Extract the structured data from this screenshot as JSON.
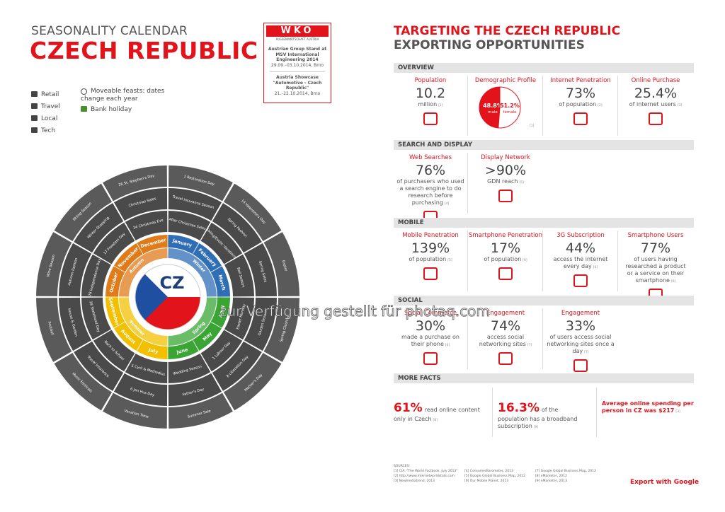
{
  "left": {
    "title": "SEASONALITY CALENDAR",
    "subtitle": "CZECH REPUBLIC",
    "wko": {
      "logo": "WKO",
      "tagline": "AUSSENWIRTSCHAFT AUSTRIA",
      "events": [
        {
          "title": "Austrian Group Stand at MSV International Engineering 2014",
          "date": "29.09.–03.10.2014, Brno"
        },
        {
          "title": "Austria Showcase \"Automotive - Czech Republic\"",
          "date": "21.–22.10.2014, Brno"
        }
      ]
    },
    "legend": {
      "categories": [
        "Retail",
        "Travel",
        "Local",
        "Tech"
      ],
      "moveable": "Moveable feasts: dates change each year",
      "holiday": "Bank holiday"
    },
    "wheel": {
      "center": "CZ",
      "seasons": [
        {
          "name": "Winter",
          "color": "#2f6db5"
        },
        {
          "name": "Spring",
          "color": "#3aa535"
        },
        {
          "name": "Summer",
          "color": "#f2c000"
        },
        {
          "name": "Autumn",
          "color": "#e07b1a"
        }
      ],
      "months": [
        {
          "name": "January",
          "events": [
            "After Christmas Sales",
            "Travel Insurance Season",
            "1 Restoration Day"
          ]
        },
        {
          "name": "February",
          "events": [
            "Skiing/Exotic Vacations",
            "Spring Fashion",
            "14 Valentine's Day"
          ]
        },
        {
          "name": "March",
          "events": [
            "Ball Season",
            "Spring Sales",
            "Easter"
          ]
        },
        {
          "name": "April",
          "events": [
            "Easter Monday",
            "Garden Season",
            "Spring Cleaning"
          ]
        },
        {
          "name": "May",
          "events": [
            "1 Labour Day",
            "8 Liberation Day",
            "Mother's Day"
          ]
        },
        {
          "name": "June",
          "events": [
            "Wedding Season",
            "Father's Day",
            "Summer Sale"
          ]
        },
        {
          "name": "July",
          "events": [
            "5 Cyril & Methodius",
            "6 Jan Hus Day",
            "Vacation Time"
          ]
        },
        {
          "name": "August",
          "events": [
            "Back to School",
            "Travel Insurance",
            "Music Festivals"
          ]
        },
        {
          "name": "September",
          "events": [
            "28 Statehood Day",
            "House & Garden",
            "Football"
          ]
        },
        {
          "name": "October",
          "events": [
            "28 Independence Day",
            "Autumn Fashion",
            "Wine Season"
          ]
        },
        {
          "name": "November",
          "events": [
            "17 Freedom Day",
            "Winter Shopping",
            "Skiing Season"
          ]
        },
        {
          "name": "December",
          "events": [
            "24 Christmas Eve",
            "Christmas Sales",
            "26 St. Stephen's Day"
          ]
        }
      ]
    }
  },
  "right": {
    "title": "TARGETING THE CZECH REPUBLIC",
    "subtitle": "EXPORTING OPPORTUNITIES",
    "sections": [
      {
        "title": "OVERVIEW",
        "items": [
          {
            "label": "Population",
            "value": "10.2",
            "desc": "million",
            "note": "[1]"
          },
          {
            "label": "Demographic Profile",
            "values": [
              48.8,
              51.2
            ],
            "value_labels": [
              "48.8%",
              "51.2%"
            ],
            "names": [
              "male",
              "female"
            ],
            "note": "[1]"
          },
          {
            "label": "Internet Penetration",
            "value": "73%",
            "desc": "of population",
            "note": "[2]"
          },
          {
            "label": "Online Purchase",
            "value": "25.4%",
            "desc": "of internet users",
            "note": "[3]"
          }
        ]
      },
      {
        "title": "SEARCH AND DISPLAY",
        "items": [
          {
            "label": "Web Searches",
            "value": "76%",
            "desc": "of purchasers who used a search engine to do research before purchasing",
            "note": "[4]"
          },
          {
            "label": "Display Network",
            "value": ">90%",
            "desc": "GDN reach",
            "note": "[5]"
          }
        ]
      },
      {
        "title": "MOBILE",
        "items": [
          {
            "label": "Mobile Penetration",
            "value": "139%",
            "desc": "of population",
            "note": "[5]"
          },
          {
            "label": "Smartphone Penetration",
            "value": "17%",
            "desc": "of population",
            "note": "[6]"
          },
          {
            "label": "3G Subscription",
            "value": "44%",
            "desc": "access the internet every day",
            "note": "[6]"
          },
          {
            "label": "Smartphone Users",
            "value": "77%",
            "desc": "of users having researched a product or a service on their smartphone",
            "note": "[6]"
          }
        ]
      },
      {
        "title": "SOCIAL",
        "items": [
          {
            "label": "Social Commerce",
            "value": "30%",
            "desc": "made a purchase on their phone",
            "note": "[6]"
          },
          {
            "label": "Engagement",
            "value": "74%",
            "desc": "access social networking sites",
            "note": "[7]"
          },
          {
            "label": "Engagement",
            "value": "33%",
            "desc": "of users access social networking sites once a day",
            "note": "[7]"
          }
        ]
      },
      {
        "title": "MORE FACTS",
        "facts": [
          {
            "value": "61%",
            "text": "read online content only in Czech",
            "note": "[8]"
          },
          {
            "value": "16.3%",
            "text": "of the population has a broadband subscription",
            "note": "[9]"
          },
          {
            "text": "Average online spending per person in CZ was",
            "value": "$217",
            "note": "[3]"
          }
        ]
      }
    ],
    "sources_title": "SOURCES:",
    "sources": [
      "[1] CIA: \"The World Factbook, July 2013\"",
      "[2] http://www.internetworldstats.com",
      "[3] Newmediatrend, 2013",
      "[4] ConsumerBarometer, 2013",
      "[5] Google Global Business Map, 2012",
      "[6] Our Mobile Planet, 2013",
      "[7] Google Global Business Map, 2012",
      "[8] eMarketer, 2012",
      "[9] eMarketer, 2013"
    ],
    "footer": "Export with Google"
  },
  "watermark": "zur Verfügung gestellt für photaq.com"
}
